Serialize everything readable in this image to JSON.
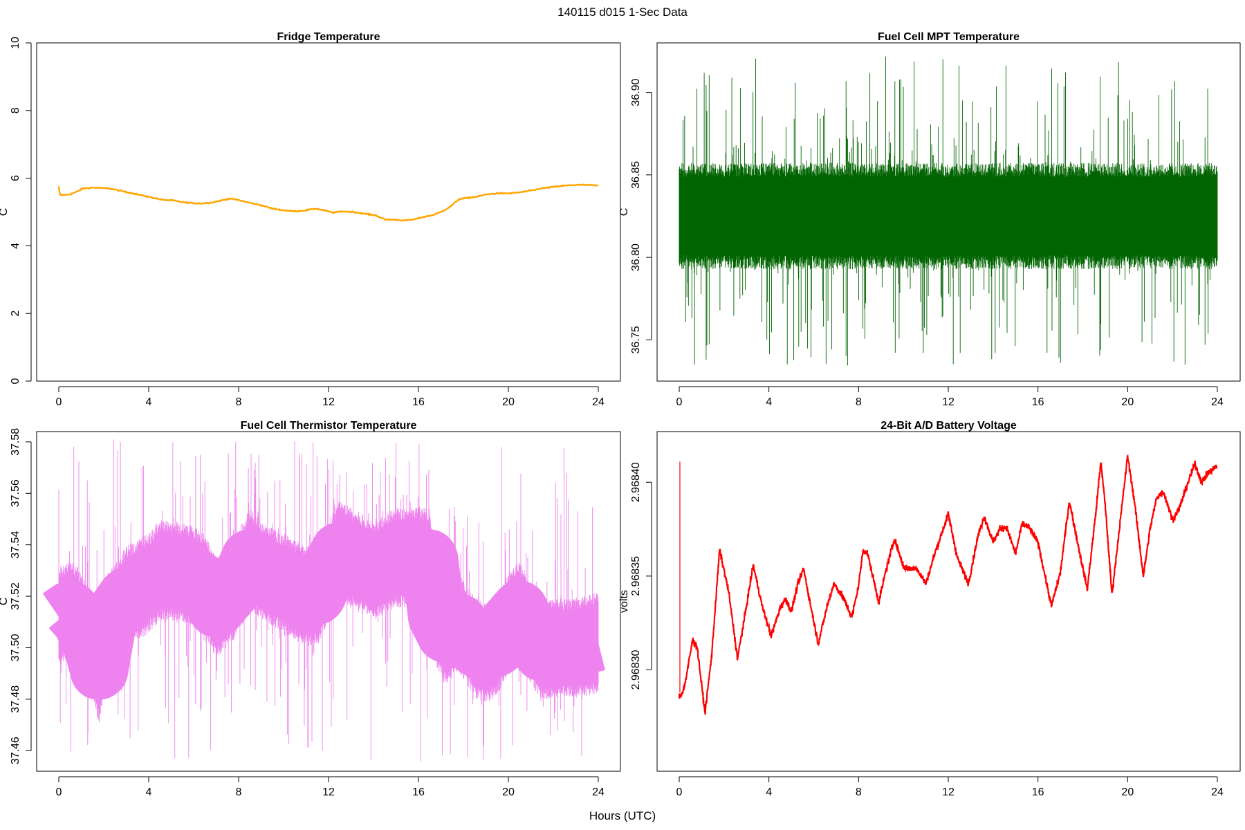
{
  "figure": {
    "suptitle": "140115   d015   1-Sec Data",
    "xlabel": "Hours (UTC)"
  },
  "chart_data": [
    {
      "type": "line",
      "title": "Fridge Temperature",
      "ylabel": "C",
      "xlabel": "",
      "color": "#FFA500",
      "xlim": [
        0,
        24
      ],
      "ylim": [
        0,
        10
      ],
      "xticks": [
        0,
        4,
        8,
        12,
        16,
        20,
        24
      ],
      "yticks": [
        0,
        2,
        4,
        6,
        8,
        10
      ],
      "ytick_labels": [
        "0",
        "2",
        "4",
        "6",
        "8",
        "10"
      ],
      "style": "smooth",
      "x": [
        0,
        0.05,
        0.1,
        0.5,
        0.8,
        1.1,
        1.5,
        2.2,
        2.8,
        3.5,
        4.2,
        4.7,
        5.0,
        5.4,
        5.8,
        6.3,
        6.8,
        7.3,
        7.6,
        8.0,
        8.5,
        9.0,
        9.5,
        10.0,
        10.5,
        11.0,
        11.4,
        11.8,
        12.2,
        12.6,
        13.1,
        13.6,
        14.1,
        14.5,
        15.0,
        15.4,
        15.8,
        16.2,
        16.6,
        17.0,
        17.4,
        17.8,
        18.2,
        18.6,
        19.0,
        19.5,
        20.0,
        20.5,
        21.0,
        21.5,
        22.0,
        22.5,
        23.0,
        23.5,
        24.0
      ],
      "y": [
        5.75,
        5.5,
        5.5,
        5.52,
        5.6,
        5.7,
        5.72,
        5.7,
        5.62,
        5.52,
        5.42,
        5.35,
        5.35,
        5.3,
        5.27,
        5.25,
        5.28,
        5.35,
        5.4,
        5.35,
        5.27,
        5.2,
        5.1,
        5.05,
        5.02,
        5.05,
        5.1,
        5.05,
        4.98,
        5.02,
        5.0,
        4.95,
        4.9,
        4.78,
        4.77,
        4.75,
        4.78,
        4.85,
        4.9,
        5.0,
        5.15,
        5.38,
        5.42,
        5.45,
        5.52,
        5.55,
        5.55,
        5.58,
        5.63,
        5.7,
        5.74,
        5.78,
        5.8,
        5.8,
        5.78
      ]
    },
    {
      "type": "line",
      "title": "Fuel Cell MPT Temperature",
      "ylabel": "C",
      "xlabel": "",
      "color": "#006400",
      "xlim": [
        0,
        24
      ],
      "ylim": [
        36.725,
        36.93
      ],
      "xticks": [
        0,
        4,
        8,
        12,
        16,
        20,
        24
      ],
      "yticks": [
        36.75,
        36.8,
        36.85,
        36.9
      ],
      "ytick_labels": [
        "36.75",
        "36.80",
        "36.85",
        "36.90"
      ],
      "style": "noise",
      "noise": {
        "center": 36.825,
        "core_half_width": 0.028,
        "spike_low": 36.732,
        "spike_high": 36.922
      },
      "x": [
        0,
        4,
        8,
        12,
        16,
        20,
        24
      ],
      "y": [
        36.825,
        36.825,
        36.825,
        36.825,
        36.825,
        36.825,
        36.825
      ]
    },
    {
      "type": "line",
      "title": "Fuel Cell Thermistor Temperature",
      "ylabel": "C",
      "xlabel": "",
      "color": "#EE82EE",
      "xlim": [
        0,
        24
      ],
      "ylim": [
        37.452,
        37.584
      ],
      "xticks": [
        0,
        4,
        8,
        12,
        16,
        20,
        24
      ],
      "yticks": [
        37.46,
        37.48,
        37.5,
        37.52,
        37.54,
        37.56,
        37.58
      ],
      "ytick_labels": [
        "37.46",
        "37.48",
        "37.50",
        "37.52",
        "37.54",
        "37.56",
        "37.58"
      ],
      "style": "noise",
      "noise": {
        "core_half_width": 0.017,
        "spike_low": 37.455,
        "spike_high": 37.581
      },
      "x": [
        0,
        0.5,
        1.0,
        1.5,
        1.8,
        2.2,
        3.0,
        4.0,
        4.5,
        5.0,
        6.0,
        6.5,
        7.0,
        7.5,
        8.0,
        8.5,
        9.0,
        10.0,
        11.0,
        11.5,
        12.0,
        12.5,
        13.0,
        14.0,
        15.0,
        16.0,
        16.5,
        16.8,
        17.2,
        17.8,
        18.5,
        19.0,
        19.5,
        20.0,
        20.5,
        21.0,
        21.5,
        22.0,
        23.0,
        24.0
      ],
      "y": [
        37.512,
        37.515,
        37.51,
        37.5,
        37.49,
        37.51,
        37.52,
        37.525,
        37.53,
        37.53,
        37.528,
        37.525,
        37.515,
        37.52,
        37.525,
        37.535,
        37.53,
        37.525,
        37.52,
        37.52,
        37.53,
        37.538,
        37.535,
        37.53,
        37.535,
        37.535,
        37.535,
        37.512,
        37.505,
        37.51,
        37.5,
        37.498,
        37.5,
        37.51,
        37.515,
        37.505,
        37.498,
        37.5,
        37.5,
        37.502
      ]
    },
    {
      "type": "line",
      "title": "24-Bit A/D Battery Voltage",
      "ylabel": "volts",
      "xlabel": "",
      "color": "#FF0000",
      "xlim": [
        0,
        24
      ],
      "ylim": [
        2.968246,
        2.968427
      ],
      "xticks": [
        0,
        4,
        8,
        12,
        16,
        20,
        24
      ],
      "yticks": [
        2.9683,
        2.96835,
        2.9684
      ],
      "ytick_labels": [
        "2.96830",
        "2.96835",
        "2.96840"
      ],
      "style": "thick",
      "spike": {
        "x": 0.03,
        "y_from": 2.968288,
        "y_to": 2.968411
      },
      "x": [
        0.0,
        0.1,
        0.25,
        0.6,
        0.8,
        1.15,
        1.45,
        1.8,
        2.2,
        2.6,
        3.0,
        3.3,
        3.7,
        4.1,
        4.5,
        4.75,
        5.0,
        5.3,
        5.55,
        5.8,
        6.2,
        6.6,
        6.9,
        7.3,
        7.7,
        8.0,
        8.2,
        8.4,
        8.9,
        9.2,
        9.6,
        10.0,
        10.3,
        10.6,
        11.0,
        11.4,
        12.0,
        12.4,
        12.9,
        13.3,
        13.6,
        14.0,
        14.3,
        14.6,
        15.0,
        15.3,
        15.6,
        16.0,
        16.6,
        17.0,
        17.4,
        17.8,
        18.2,
        18.6,
        18.8,
        19.0,
        19.3,
        19.6,
        20.0,
        20.3,
        20.7,
        21.0,
        21.3,
        21.6,
        22.0,
        22.3,
        22.7,
        23.0,
        23.3,
        23.6,
        23.9
      ],
      "y": [
        2.968286,
        2.968287,
        2.968292,
        2.968316,
        2.968312,
        2.968277,
        2.968308,
        2.968364,
        2.968342,
        2.968306,
        2.968334,
        2.968356,
        2.968334,
        2.968318,
        2.968333,
        2.968338,
        2.968331,
        2.968346,
        2.968354,
        2.968338,
        2.968314,
        2.968334,
        2.968346,
        2.968339,
        2.968328,
        2.968345,
        2.968364,
        2.968362,
        2.968336,
        2.968352,
        2.96837,
        2.968355,
        2.968354,
        2.968354,
        2.968346,
        2.968362,
        2.968383,
        2.96836,
        2.968346,
        2.96837,
        2.968382,
        2.968368,
        2.968375,
        2.968376,
        2.968362,
        2.968378,
        2.968376,
        2.968368,
        2.968334,
        2.968352,
        2.96839,
        2.968366,
        2.968343,
        2.968386,
        2.968411,
        2.968388,
        2.96834,
        2.968372,
        2.968414,
        2.96839,
        2.96835,
        2.968375,
        2.968392,
        2.968395,
        2.96838,
        2.968386,
        2.9684,
        2.96841,
        2.9684,
        2.968405,
        2.968408
      ]
    }
  ]
}
